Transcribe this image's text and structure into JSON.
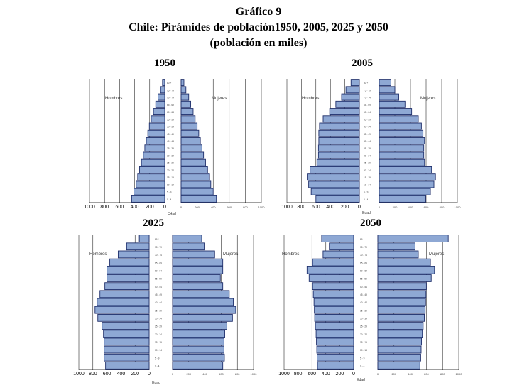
{
  "title": {
    "line1": "Gráfico 9",
    "line2": "Chile: Pirámides de población1950, 2005, 2025 y 2050",
    "line3": "(población en miles)"
  },
  "colors": {
    "bar_fill": "#8ea8d4",
    "bar_stroke": "#1f2f6b",
    "axis": "#000000",
    "grid": "#000000"
  },
  "chart_data": [
    {
      "type": "bar",
      "year_label": "1950",
      "left_label": "Hombres",
      "right_label": "Mujeres",
      "axis_label": "Edad",
      "categories": [
        "0 - 4",
        "5 - 9",
        "10 - 14",
        "15 - 19",
        "20 - 24",
        "25 - 29",
        "30 - 34",
        "35 - 39",
        "40 - 44",
        "45 - 49",
        "50 - 54",
        "55 - 59",
        "60 - 64",
        "65 - 69",
        "70 - 74",
        "75 - 79",
        "80 +"
      ],
      "xlim_left": [
        1000,
        0
      ],
      "xlim_right": [
        0,
        1000
      ],
      "xticks_left": [
        "1000",
        "800",
        "600",
        "400",
        "200",
        "0"
      ],
      "xticks_right": [
        "0",
        "200",
        "400",
        "600",
        "800",
        "1000"
      ],
      "series": [
        {
          "name": "Hombres",
          "values": [
            440,
            410,
            380,
            360,
            335,
            310,
            285,
            265,
            245,
            225,
            205,
            180,
            150,
            120,
            90,
            55,
            30
          ]
        },
        {
          "name": "Mujeres",
          "values": [
            440,
            400,
            370,
            355,
            330,
            305,
            280,
            260,
            240,
            220,
            200,
            175,
            150,
            120,
            95,
            60,
            35
          ]
        }
      ]
    },
    {
      "type": "bar",
      "year_label": "2005",
      "left_label": "Hombres",
      "right_label": "Mujeres",
      "axis_label": "Edad",
      "categories": [
        "0 - 4",
        "5 - 9",
        "10 - 14",
        "15 - 19",
        "20 - 24",
        "25 - 29",
        "30 - 34",
        "35 - 39",
        "40 - 44",
        "45 - 49",
        "50 - 54",
        "55 - 59",
        "60 - 64",
        "65 - 69",
        "70 - 74",
        "75 - 79",
        "80 +"
      ],
      "xlim_left": [
        1000,
        0
      ],
      "xlim_right": [
        0,
        1000
      ],
      "xticks_left": [
        "1000",
        "800",
        "600",
        "400",
        "200",
        "0"
      ],
      "xticks_right": [
        "0",
        "200",
        "400",
        "600",
        "800",
        "1000"
      ],
      "series": [
        {
          "name": "Hombres",
          "values": [
            600,
            665,
            700,
            720,
            680,
            585,
            565,
            565,
            560,
            560,
            550,
            500,
            410,
            325,
            245,
            185,
            115
          ]
        },
        {
          "name": "Mujeres",
          "values": [
            595,
            655,
            700,
            720,
            670,
            580,
            570,
            570,
            580,
            560,
            540,
            500,
            415,
            330,
            250,
            200,
            150
          ]
        }
      ]
    },
    {
      "type": "bar",
      "year_label": "2025",
      "left_label": "Hombres",
      "right_label": "Mujeres",
      "axis_label": "Edad",
      "categories": [
        "0 - 4",
        "5 - 9",
        "10 - 14",
        "15 - 19",
        "20 - 24",
        "25 - 29",
        "30 - 34",
        "35 - 39",
        "40 - 44",
        "45 - 49",
        "50 - 54",
        "55 - 59",
        "60 - 64",
        "65 - 69",
        "70 - 74",
        "75 - 79",
        "80 +"
      ],
      "xlim_left": [
        1000,
        0
      ],
      "xlim_right": [
        0,
        1000
      ],
      "xticks_left": [
        "1000",
        "800",
        "600",
        "400",
        "200",
        "0"
      ],
      "xticks_right": [
        "0",
        "200",
        "400",
        "600",
        "800",
        "1000"
      ],
      "series": [
        {
          "name": "Hombres",
          "values": [
            620,
            640,
            640,
            640,
            650,
            670,
            730,
            770,
            740,
            700,
            630,
            600,
            600,
            560,
            440,
            320,
            140
          ]
        },
        {
          "name": "Mujeres",
          "values": [
            620,
            640,
            635,
            635,
            645,
            670,
            740,
            780,
            750,
            700,
            620,
            590,
            620,
            620,
            520,
            390,
            360
          ]
        }
      ]
    },
    {
      "type": "bar",
      "year_label": "2050",
      "left_label": "Hombres",
      "right_label": "Mujeres",
      "axis_label": "Edad",
      "categories": [
        "0 - 4",
        "5 - 9",
        "10 - 14",
        "15 - 19",
        "20 - 24",
        "25 - 29",
        "30 - 34",
        "35 - 39",
        "40 - 44",
        "45 - 49",
        "50 - 54",
        "55 - 59",
        "60 - 64",
        "65 - 69",
        "70 - 74",
        "75 - 79",
        "80 +"
      ],
      "xlim_left": [
        1000,
        0
      ],
      "xlim_right": [
        0,
        1000
      ],
      "xticks_left": [
        "1000",
        "800",
        "600",
        "400",
        "200",
        "0"
      ],
      "xticks_right": [
        "0",
        "200",
        "400",
        "600",
        "800",
        "1000"
      ],
      "series": [
        {
          "name": "Hombres",
          "values": [
            520,
            525,
            530,
            535,
            540,
            550,
            560,
            565,
            570,
            580,
            590,
            640,
            670,
            590,
            440,
            350,
            460
          ]
        },
        {
          "name": "Mujeres",
          "values": [
            520,
            530,
            535,
            540,
            550,
            560,
            575,
            585,
            590,
            595,
            600,
            660,
            700,
            650,
            500,
            460,
            870
          ]
        }
      ]
    }
  ]
}
